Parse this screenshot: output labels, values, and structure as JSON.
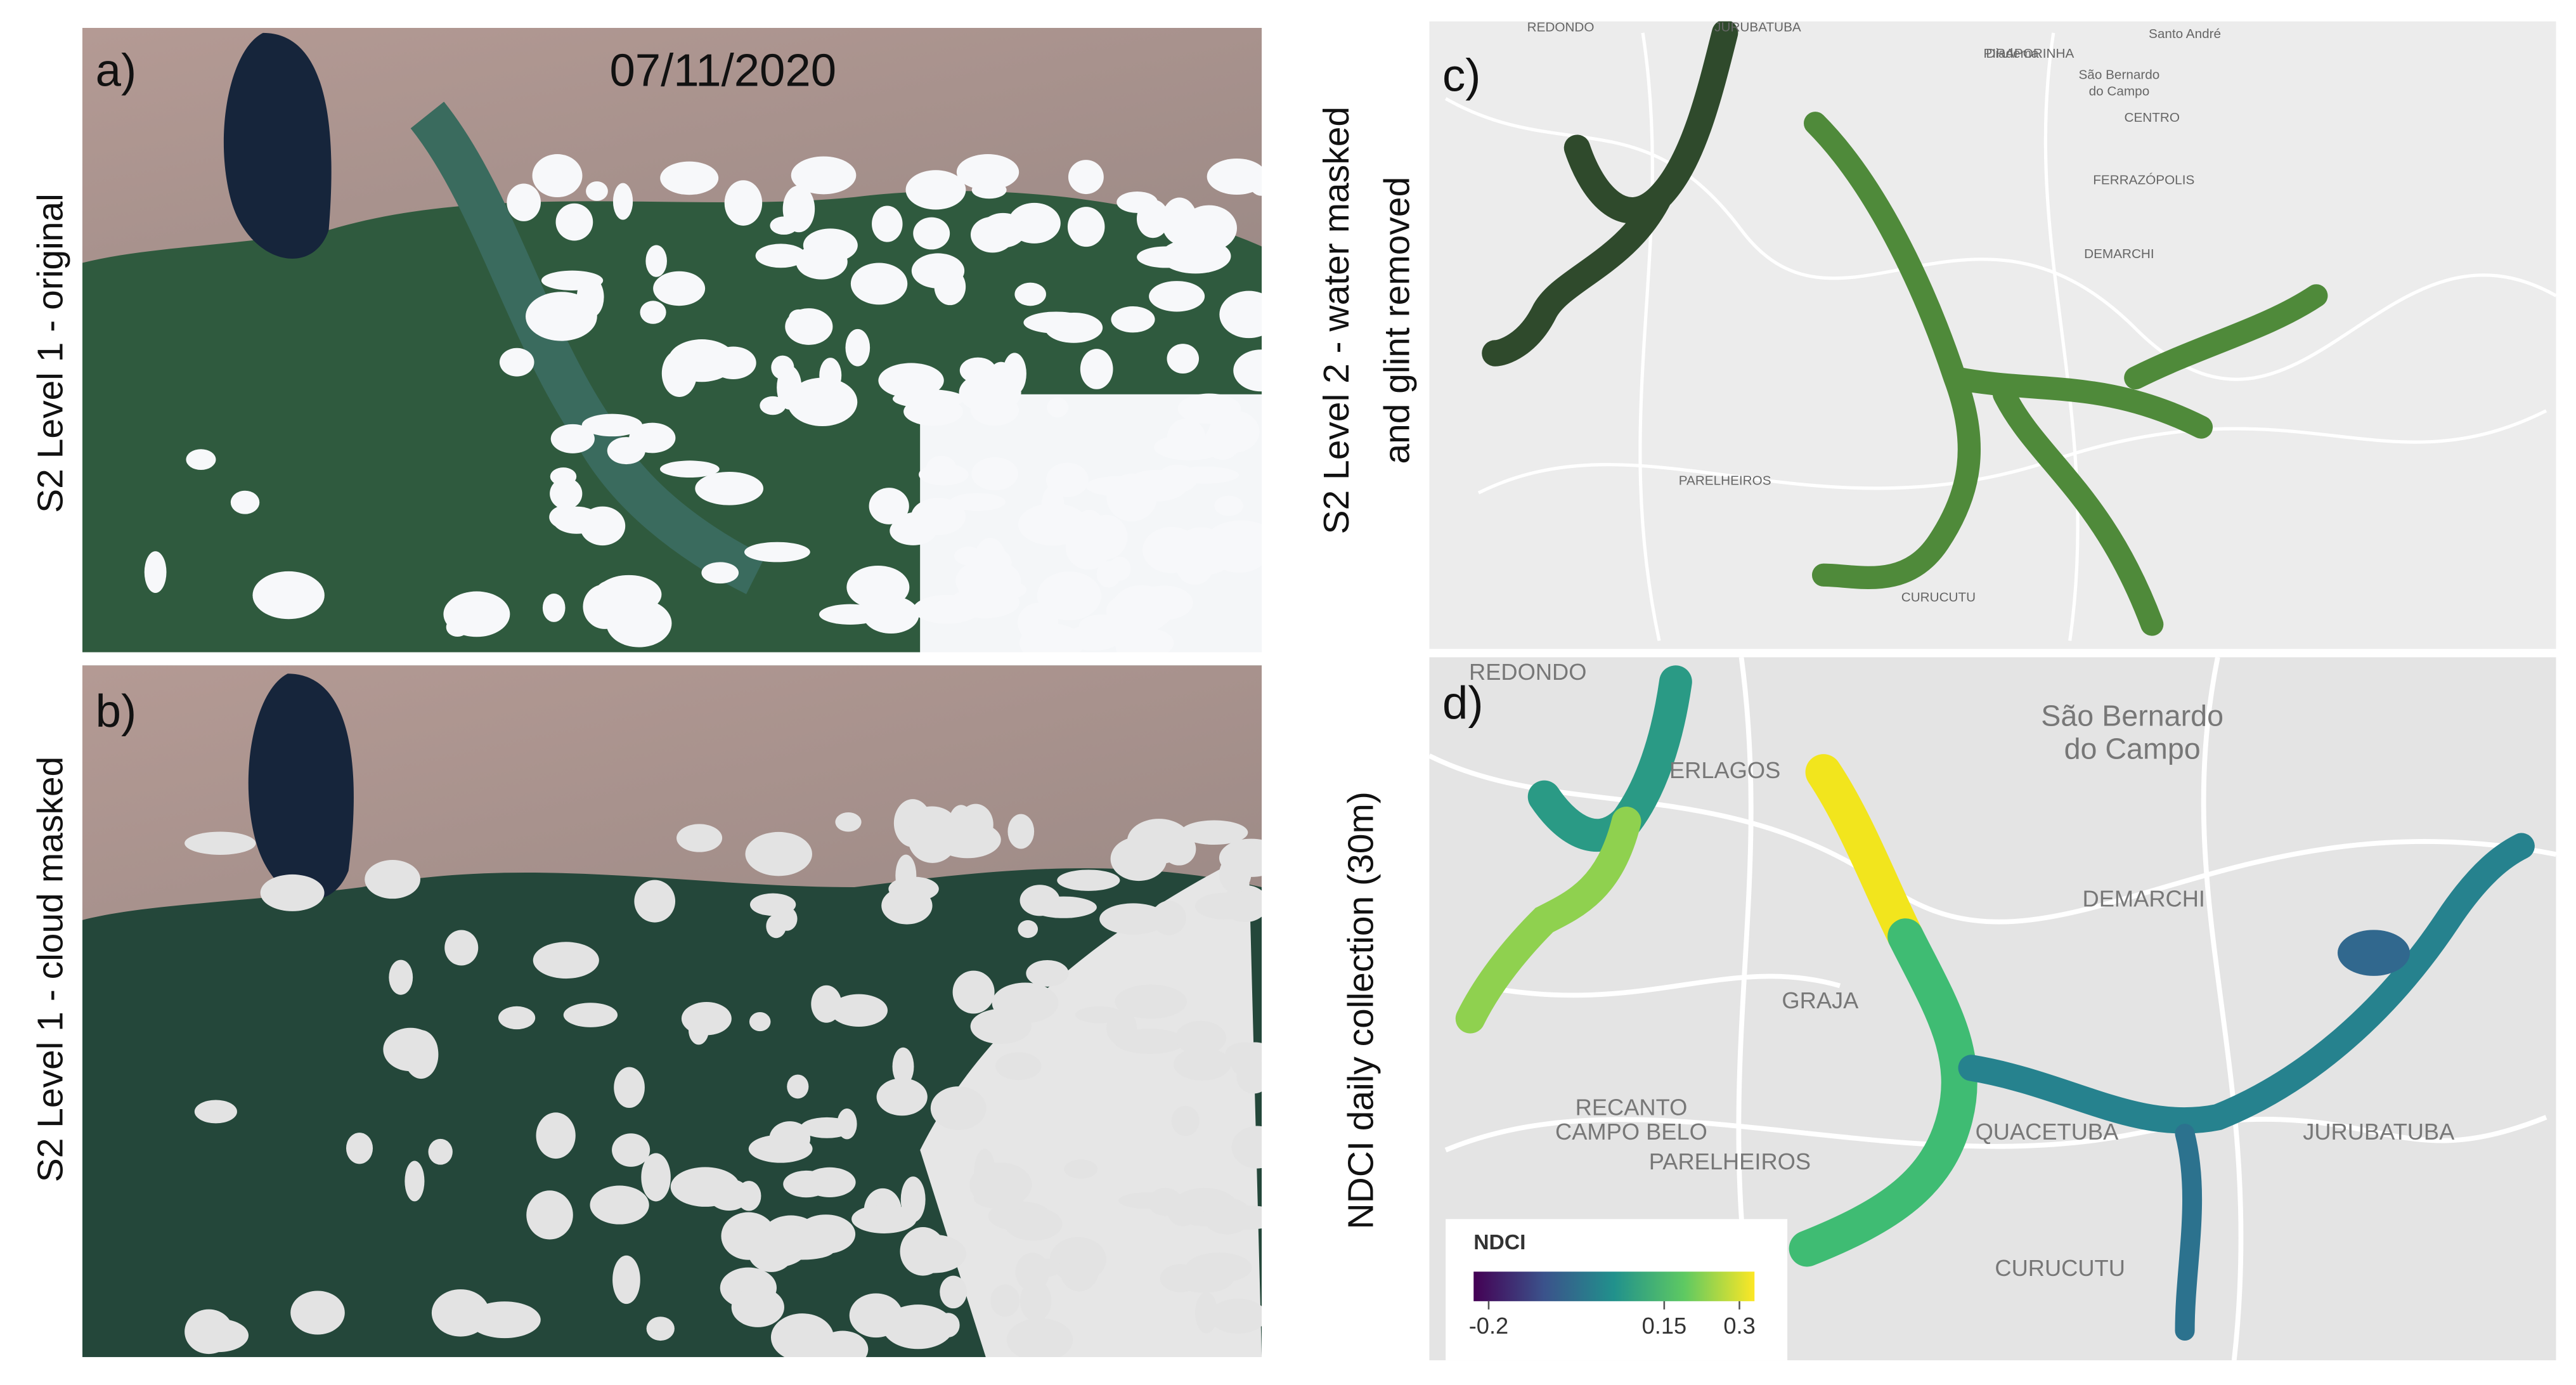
{
  "panels": [
    {
      "letter": "a)",
      "side_label": "S2 Level 1 - original",
      "date": "07/11/2020"
    },
    {
      "letter": "b)",
      "side_label": "S2 Level 1 - cloud masked"
    },
    {
      "letter": "c)",
      "side_label_lines": [
        "S2 Level 2 -  water  masked",
        "and glint removed"
      ],
      "map_labels": [
        "REDONDO",
        "JURUBATUBA",
        "PIRAPORINHA",
        "Santo André",
        "Diadema",
        "São Bernardo",
        "do Campo",
        "CENTRO",
        "FERRAZÓPOLIS",
        "DEMARCHI",
        "PARELHEIROS",
        "CURUCUTU"
      ]
    },
    {
      "letter": "d)",
      "side_label": "NDCI daily collection (30m)",
      "map_labels": [
        "REDONDO",
        "ERLAGOS",
        "São Bernardo",
        "do Campo",
        "DEMARCHI",
        "GRAJA",
        "RECANTO",
        "CAMPO BELO",
        "PARELHEIROS",
        "QUACETUBA",
        "JURUBATUBA",
        "CURUCUTU"
      ],
      "legend": {
        "title": "NDCI",
        "colormap": "viridis",
        "range": [
          -0.23,
          0.33
        ],
        "ticks": [
          -0.2,
          0.15,
          0.3
        ]
      }
    }
  ]
}
